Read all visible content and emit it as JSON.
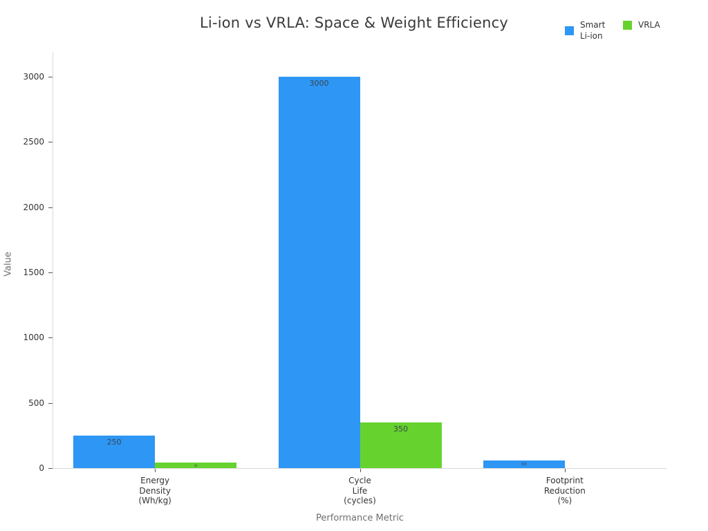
{
  "chart_data": {
    "type": "bar",
    "title": "Li-ion vs VRLA: Space & Weight Efficiency",
    "xlabel": "Performance Metric",
    "ylabel": "Value",
    "categories": [
      "Energy\nDensity\n(Wh/kg)",
      "Cycle\nLife\n(cycles)",
      "Footprint\nReduction\n(%)"
    ],
    "series": [
      {
        "name": "Smart Li-ion",
        "color": "#2E96F5",
        "values": [
          250,
          3000,
          60
        ]
      },
      {
        "name": "VRLA",
        "color": "#66D22E",
        "values": [
          40,
          350,
          0
        ]
      }
    ],
    "bar_labels": [
      [
        "250",
        "3000",
        "60"
      ],
      [
        "40",
        "350",
        ""
      ]
    ],
    "yticks": [
      0,
      500,
      1000,
      1500,
      2000,
      2500,
      3000
    ],
    "ylim": [
      0,
      3190
    ],
    "grid": false,
    "legend_position": "top-right"
  }
}
